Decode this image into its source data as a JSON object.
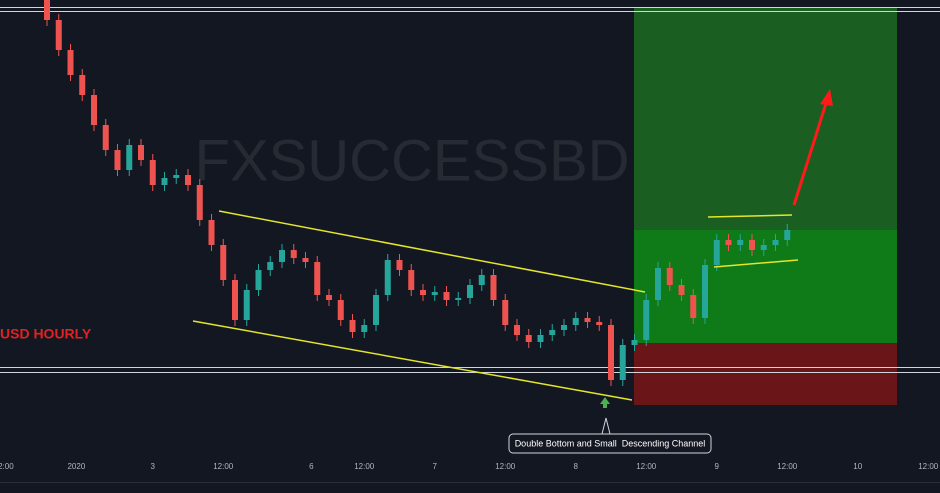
{
  "chart_data": {
    "type": "candlestick",
    "watermark": "FXSUCCESSBD",
    "title": "USD HOURLY",
    "annotation": "Double Bottom and Small  Descending Channel",
    "up_color": "#26a69a",
    "down_color": "#ef5350",
    "xlim": [
      0,
      160
    ],
    "ylim": [
      0,
      460
    ],
    "xticks": [
      {
        "value": 1,
        "label": "2:00"
      },
      {
        "value": 13,
        "label": "2020"
      },
      {
        "value": 26,
        "label": "3"
      },
      {
        "value": 38,
        "label": "12:00"
      },
      {
        "value": 53,
        "label": "6"
      },
      {
        "value": 62,
        "label": "12:00"
      },
      {
        "value": 74,
        "label": "7"
      },
      {
        "value": 86,
        "label": "12:00"
      },
      {
        "value": 98,
        "label": "8"
      },
      {
        "value": 110,
        "label": "12:00"
      },
      {
        "value": 122,
        "label": "9"
      },
      {
        "value": 134,
        "label": "12:00"
      },
      {
        "value": 146,
        "label": "10"
      },
      {
        "value": 158,
        "label": "12:00"
      }
    ],
    "x": [
      8,
      10,
      12,
      14,
      16,
      18,
      20,
      22,
      24,
      26,
      28,
      30,
      32,
      34,
      36,
      38,
      40,
      42,
      44,
      46,
      48,
      50,
      52,
      54,
      56,
      58,
      60,
      62,
      64,
      66,
      68,
      70,
      72,
      74,
      76,
      78,
      80,
      82,
      84,
      86,
      88,
      90,
      92,
      94,
      96,
      98,
      100,
      102,
      104,
      106,
      108,
      110,
      112,
      114,
      116,
      118,
      120,
      122,
      124,
      126,
      128,
      130,
      132,
      134
    ],
    "open": [
      460,
      440,
      410,
      385,
      365,
      335,
      310,
      290,
      315,
      300,
      275,
      282,
      285,
      275,
      240,
      215,
      180,
      140,
      170,
      190,
      198,
      210,
      202,
      198,
      165,
      160,
      140,
      128,
      135,
      165,
      200,
      190,
      170,
      165,
      168,
      160,
      162,
      175,
      185,
      160,
      135,
      125,
      118,
      125,
      130,
      135,
      142,
      138,
      135,
      80,
      115,
      120,
      160,
      192,
      175,
      165,
      142,
      195,
      220,
      215,
      220,
      210,
      215,
      220
    ],
    "high": [
      466,
      446,
      416,
      391,
      371,
      341,
      316,
      321,
      321,
      306,
      288,
      291,
      291,
      281,
      246,
      221,
      186,
      176,
      196,
      204,
      216,
      216,
      208,
      204,
      171,
      166,
      146,
      141,
      171,
      206,
      206,
      196,
      176,
      174,
      174,
      168,
      181,
      191,
      191,
      166,
      141,
      131,
      131,
      136,
      141,
      148,
      148,
      144,
      141,
      121,
      126,
      166,
      198,
      198,
      181,
      171,
      201,
      226,
      226,
      226,
      226,
      221,
      226,
      236
    ],
    "low": [
      434,
      404,
      379,
      359,
      329,
      304,
      284,
      284,
      294,
      269,
      269,
      276,
      269,
      234,
      209,
      174,
      134,
      134,
      164,
      184,
      192,
      196,
      192,
      159,
      154,
      134,
      122,
      122,
      129,
      159,
      184,
      164,
      159,
      159,
      154,
      154,
      156,
      169,
      154,
      129,
      119,
      112,
      112,
      119,
      124,
      129,
      132,
      129,
      74,
      74,
      109,
      114,
      154,
      169,
      159,
      136,
      136,
      189,
      209,
      209,
      204,
      204,
      209,
      214
    ],
    "close": [
      440,
      410,
      385,
      365,
      335,
      310,
      290,
      315,
      300,
      275,
      282,
      285,
      275,
      240,
      215,
      180,
      140,
      170,
      190,
      198,
      210,
      202,
      198,
      165,
      160,
      140,
      128,
      135,
      165,
      200,
      190,
      170,
      165,
      168,
      160,
      162,
      175,
      185,
      160,
      135,
      125,
      118,
      125,
      130,
      135,
      142,
      138,
      135,
      80,
      115,
      120,
      160,
      192,
      175,
      165,
      142,
      195,
      220,
      215,
      220,
      210,
      215,
      220,
      230
    ]
  }
}
